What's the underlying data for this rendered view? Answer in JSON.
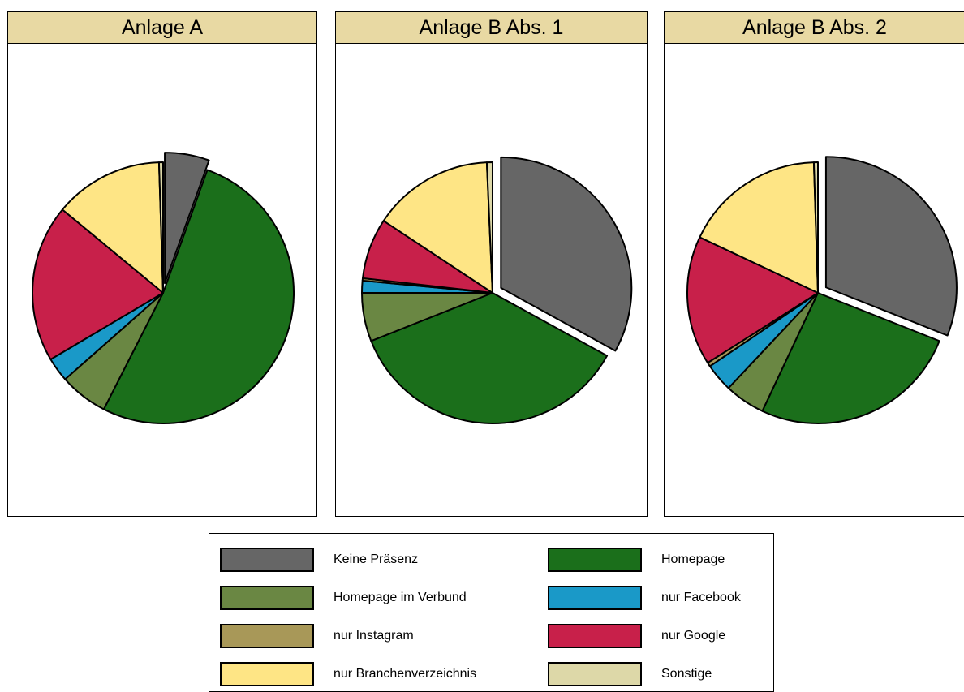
{
  "chart_data": {
    "type": "pie",
    "categories": [
      "Keine Präsenz",
      "Homepage",
      "Homepage im Verbund",
      "nur Facebook",
      "nur Instagram",
      "nur Google",
      "nur Branchenverzeichnis",
      "Sonstige"
    ],
    "colors": [
      "#666666",
      "#1b6f1b",
      "#6a8743",
      "#1a99c8",
      "#a89858",
      "#c8204a",
      "#fee585",
      "#ddd8a8"
    ],
    "panels": [
      {
        "title": "Anlage A",
        "exploded": "Keine Präsenz",
        "values": [
          5.5,
          52,
          6,
          3,
          0,
          19.5,
          13.5,
          0.5
        ]
      },
      {
        "title": "Anlage B Abs. 1",
        "exploded": "Keine Präsenz",
        "values": [
          33,
          36,
          6,
          1.5,
          0.3,
          7.5,
          15,
          0.7
        ]
      },
      {
        "title": "Anlage B Abs. 2",
        "exploded": "Keine Präsenz",
        "values": [
          31,
          26,
          5,
          3.5,
          0.5,
          16,
          17.5,
          0.5
        ]
      }
    ],
    "legend": {
      "position": "bottom",
      "columns": 2
    }
  }
}
